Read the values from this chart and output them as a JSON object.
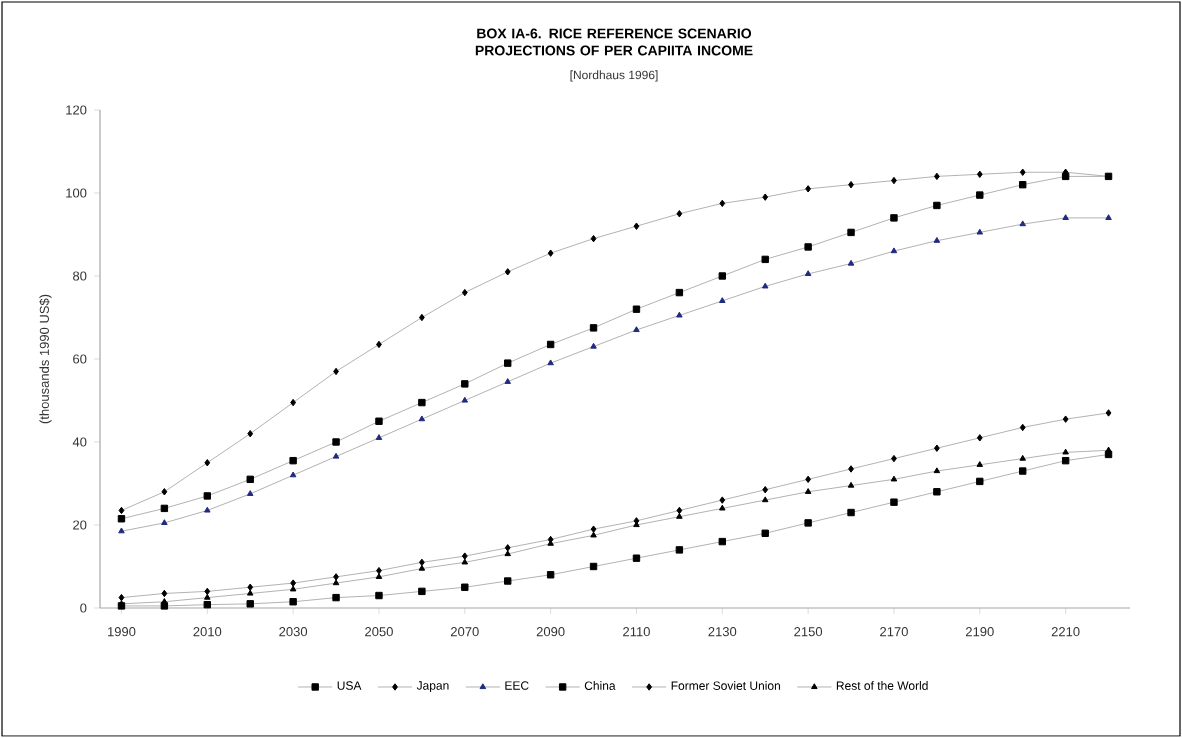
{
  "chart_data": {
    "type": "line",
    "title": "BOX IA-6.  RICE REFERENCE SCENARIO PROJECTIONS OF PER CAPIITA INCOME",
    "subtitle": "[Nordhaus 1996]",
    "ylabel": "(thousands 1990 US$)",
    "x": [
      1990,
      2000,
      2010,
      2020,
      2030,
      2040,
      2050,
      2060,
      2070,
      2080,
      2090,
      2100,
      2110,
      2120,
      2130,
      2140,
      2150,
      2160,
      2170,
      2180,
      2190,
      2200,
      2210,
      2220
    ],
    "series": [
      {
        "name": "USA",
        "color": "#000000",
        "marker": "square",
        "values": [
          21.5,
          24,
          27,
          31,
          35.5,
          40,
          45,
          49.5,
          54,
          59,
          63.5,
          67.5,
          72,
          76,
          80,
          84,
          87,
          90.5,
          94,
          97,
          99.5,
          102,
          104,
          104
        ]
      },
      {
        "name": "Japan",
        "color": "#000000",
        "marker": "diamond",
        "values": [
          23.5,
          28,
          35,
          42,
          49.5,
          57,
          63.5,
          70,
          76,
          81,
          85.5,
          89,
          92,
          95,
          97.5,
          99,
          101,
          102,
          103,
          104,
          104.5,
          105,
          105,
          104
        ]
      },
      {
        "name": "EEC",
        "color": "#1f2a80",
        "marker": "triangle",
        "values": [
          18.5,
          20.5,
          23.5,
          27.5,
          32,
          36.5,
          41,
          45.5,
          50,
          54.5,
          59,
          63,
          67,
          70.5,
          74,
          77.5,
          80.5,
          83,
          86,
          88.5,
          90.5,
          92.5,
          94,
          94
        ]
      },
      {
        "name": "China",
        "color": "#000000",
        "marker": "square",
        "values": [
          0.5,
          0.5,
          0.8,
          1,
          1.5,
          2.5,
          3,
          4,
          5,
          6.5,
          8,
          10,
          12,
          14,
          16,
          18,
          20.5,
          23,
          25.5,
          28,
          30.5,
          33,
          35.5,
          37
        ]
      },
      {
        "name": "Former Soviet Union",
        "color": "#000000",
        "marker": "diamond",
        "values": [
          2.5,
          3.5,
          4,
          5,
          6,
          7.5,
          9,
          11,
          12.5,
          14.5,
          16.5,
          19,
          21,
          23.5,
          26,
          28.5,
          31,
          33.5,
          36,
          38.5,
          41,
          43.5,
          45.5,
          47
        ]
      },
      {
        "name": "Rest of the World",
        "color": "#000000",
        "marker": "triangle",
        "values": [
          1,
          1.5,
          2.5,
          3.5,
          4.5,
          6,
          7.5,
          9.5,
          11,
          13,
          15.5,
          17.5,
          20,
          22,
          24,
          26,
          28,
          29.5,
          31,
          33,
          34.5,
          36,
          37.5,
          38
        ]
      }
    ],
    "xlim": [
      1985,
      2225
    ],
    "ylim": [
      0,
      120
    ],
    "xticks": [
      1990,
      2010,
      2030,
      2050,
      2070,
      2090,
      2110,
      2130,
      2150,
      2170,
      2190,
      2210
    ],
    "yticks": [
      0,
      20,
      40,
      60,
      80,
      100,
      120
    ],
    "grid": false,
    "legend": "bottom"
  }
}
